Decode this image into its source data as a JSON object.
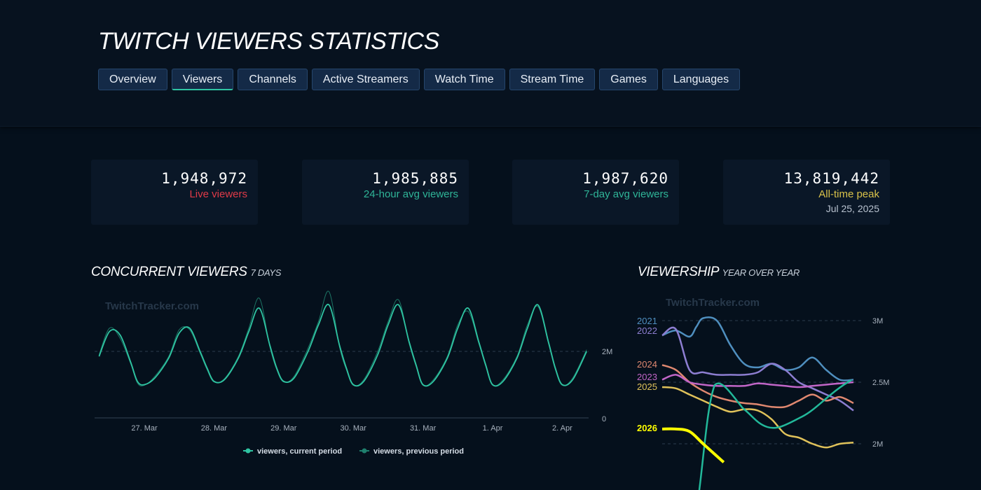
{
  "header": {
    "title": "TWITCH VIEWERS STATISTICS",
    "tabs": [
      {
        "label": "Overview",
        "active": false
      },
      {
        "label": "Viewers",
        "active": true
      },
      {
        "label": "Channels",
        "active": false
      },
      {
        "label": "Active Streamers",
        "active": false
      },
      {
        "label": "Watch Time",
        "active": false
      },
      {
        "label": "Stream Time",
        "active": false
      },
      {
        "label": "Games",
        "active": false
      },
      {
        "label": "Languages",
        "active": false
      }
    ]
  },
  "stats": [
    {
      "value": "1,948,972",
      "label": "Live viewers",
      "color": "#e03a48",
      "sub": ""
    },
    {
      "value": "1,985,885",
      "label": "24-hour avg viewers",
      "color": "#2fb598",
      "sub": ""
    },
    {
      "value": "1,987,620",
      "label": "7-day avg viewers",
      "color": "#2fb598",
      "sub": ""
    },
    {
      "value": "13,819,442",
      "label": "All-time peak",
      "color": "#d9c24a",
      "sub": "Jul 25, 2025"
    }
  ],
  "watermark": "TwitchTracker.com",
  "concurrent": {
    "title": "CONCURRENT VIEWERS",
    "subtitle": "7 DAYS"
  },
  "yoy": {
    "title": "VIEWERSHIP",
    "subtitle": "YEAR OVER YEAR"
  },
  "chart_data": [
    {
      "type": "line",
      "title": "CONCURRENT VIEWERS 7 DAYS",
      "x_ticks": [
        "27. Mar",
        "28. Mar",
        "29. Mar",
        "30. Mar",
        "31. Mar",
        "1. Apr",
        "2. Apr"
      ],
      "y_ticks": [
        "0",
        "2M"
      ],
      "ylim": [
        0,
        3000000
      ],
      "grid": false,
      "legend_position": "bottom",
      "series": [
        {
          "name": "viewers, current period",
          "color": "#2fc4a2",
          "x_days": [
            -0.65,
            -0.5,
            -0.35,
            -0.2,
            -0.1,
            0,
            0.15,
            0.35,
            0.5,
            0.65,
            0.8,
            0.9,
            1.0,
            1.15,
            1.35,
            1.5,
            1.65,
            1.8,
            1.9,
            2.0,
            2.15,
            2.35,
            2.5,
            2.65,
            2.8,
            2.9,
            3.0,
            3.15,
            3.35,
            3.5,
            3.65,
            3.8,
            3.9,
            4.0,
            4.15,
            4.35,
            4.5,
            4.65,
            4.8,
            4.9,
            5.0,
            5.15,
            5.35,
            5.5,
            5.65,
            5.8,
            5.9,
            6.0,
            6.15,
            6.35
          ],
          "values": [
            1850000,
            2600000,
            2500000,
            1700000,
            1100000,
            1000000,
            1200000,
            1800000,
            2550000,
            2700000,
            2000000,
            1500000,
            1100000,
            1150000,
            1800000,
            2600000,
            3300000,
            2200000,
            1500000,
            1100000,
            1200000,
            2000000,
            2800000,
            3400000,
            2200000,
            1500000,
            1000000,
            1100000,
            1900000,
            2800000,
            3400000,
            2300000,
            1600000,
            1000000,
            1100000,
            1800000,
            2700000,
            3300000,
            2300000,
            1600000,
            1000000,
            1100000,
            1800000,
            2700000,
            3400000,
            2300000,
            1500000,
            1000000,
            1150000,
            2000000
          ]
        },
        {
          "name": "viewers, previous period",
          "color": "#1f7f6d",
          "x_days": [
            -0.65,
            -0.5,
            -0.35,
            -0.2,
            -0.1,
            0,
            0.15,
            0.35,
            0.5,
            0.65,
            0.8,
            0.9,
            1.0,
            1.15,
            1.35,
            1.5,
            1.65,
            1.8,
            1.9,
            2.0,
            2.15,
            2.35,
            2.5,
            2.65,
            2.8,
            2.9,
            3.0,
            3.15,
            3.35,
            3.5,
            3.65,
            3.8,
            3.9,
            4.0,
            4.15,
            4.35,
            4.5,
            4.65,
            4.8,
            4.9,
            5.0,
            5.15,
            5.35,
            5.5,
            5.65,
            5.8,
            5.9,
            6.0,
            6.15,
            6.35
          ],
          "values": [
            1900000,
            2700000,
            2400000,
            1650000,
            1050000,
            980000,
            1250000,
            1850000,
            2650000,
            2650000,
            1950000,
            1450000,
            1080000,
            1180000,
            1850000,
            2700000,
            3600000,
            2150000,
            1450000,
            1080000,
            1250000,
            2100000,
            2900000,
            3800000,
            2150000,
            1450000,
            980000,
            1150000,
            2000000,
            2900000,
            3550000,
            2250000,
            1550000,
            980000,
            1150000,
            1850000,
            2800000,
            3200000,
            2250000,
            1550000,
            980000,
            1150000,
            1850000,
            2800000,
            3350000,
            2250000,
            1450000,
            980000,
            1200000,
            2050000
          ]
        }
      ]
    },
    {
      "type": "line",
      "title": "VIEWERSHIP YEAR OVER YEAR",
      "y_ticks": [
        "2M",
        "2.5M",
        "3M"
      ],
      "ylim": [
        1600000,
        3100000
      ],
      "x_range": [
        0,
        14
      ],
      "grid": true,
      "legend_position": "left",
      "series": [
        {
          "name": "2021",
          "color": "#4f8fbf",
          "x": [
            0,
            1,
            2,
            2.5,
            3,
            4,
            5,
            6,
            7,
            8,
            9,
            10,
            11,
            12,
            13,
            14
          ],
          "values": [
            2880000,
            2920000,
            2870000,
            2950000,
            3020000,
            3000000,
            2800000,
            2650000,
            2620000,
            2650000,
            2600000,
            2620000,
            2700000,
            2600000,
            2520000,
            2520000
          ]
        },
        {
          "name": "2022",
          "color": "#8d7ed1",
          "x": [
            0,
            1,
            2,
            3,
            4,
            5,
            6,
            7,
            8,
            9,
            10,
            11,
            12,
            13,
            14
          ],
          "values": [
            2880000,
            2930000,
            2600000,
            2580000,
            2560000,
            2560000,
            2560000,
            2580000,
            2650000,
            2600000,
            2500000,
            2450000,
            2400000,
            2350000,
            2270000
          ]
        },
        {
          "name": "2024",
          "color": "#e08870",
          "x": [
            0,
            1,
            2,
            3,
            4,
            5,
            6,
            7,
            8,
            9,
            10,
            11,
            12,
            13,
            14
          ],
          "values": [
            2640000,
            2600000,
            2500000,
            2430000,
            2380000,
            2350000,
            2330000,
            2320000,
            2300000,
            2300000,
            2350000,
            2400000,
            2350000,
            2380000,
            2330000
          ]
        },
        {
          "name": "2023",
          "color": "#c266c8",
          "x": [
            0,
            1,
            2,
            3,
            4,
            5,
            6,
            7,
            8,
            9,
            10,
            11,
            12,
            13,
            14
          ],
          "values": [
            2520000,
            2560000,
            2500000,
            2480000,
            2470000,
            2470000,
            2470000,
            2490000,
            2480000,
            2470000,
            2460000,
            2470000,
            2480000,
            2490000,
            2500000
          ]
        },
        {
          "name": "2025",
          "color": "#e0c25a",
          "x": [
            0,
            1,
            2,
            3,
            4,
            5,
            6,
            7,
            8,
            9,
            10,
            11,
            12,
            13,
            14
          ],
          "values": [
            2460000,
            2450000,
            2400000,
            2350000,
            2300000,
            2260000,
            2280000,
            2270000,
            2200000,
            2080000,
            2050000,
            2000000,
            1970000,
            2000000,
            2010000
          ]
        },
        {
          "name": "2026",
          "color": "#ffff00",
          "x": [
            0,
            1,
            2,
            3,
            4.5
          ],
          "values": [
            2120000,
            2120000,
            2100000,
            2000000,
            1850000
          ]
        }
      ]
    }
  ]
}
